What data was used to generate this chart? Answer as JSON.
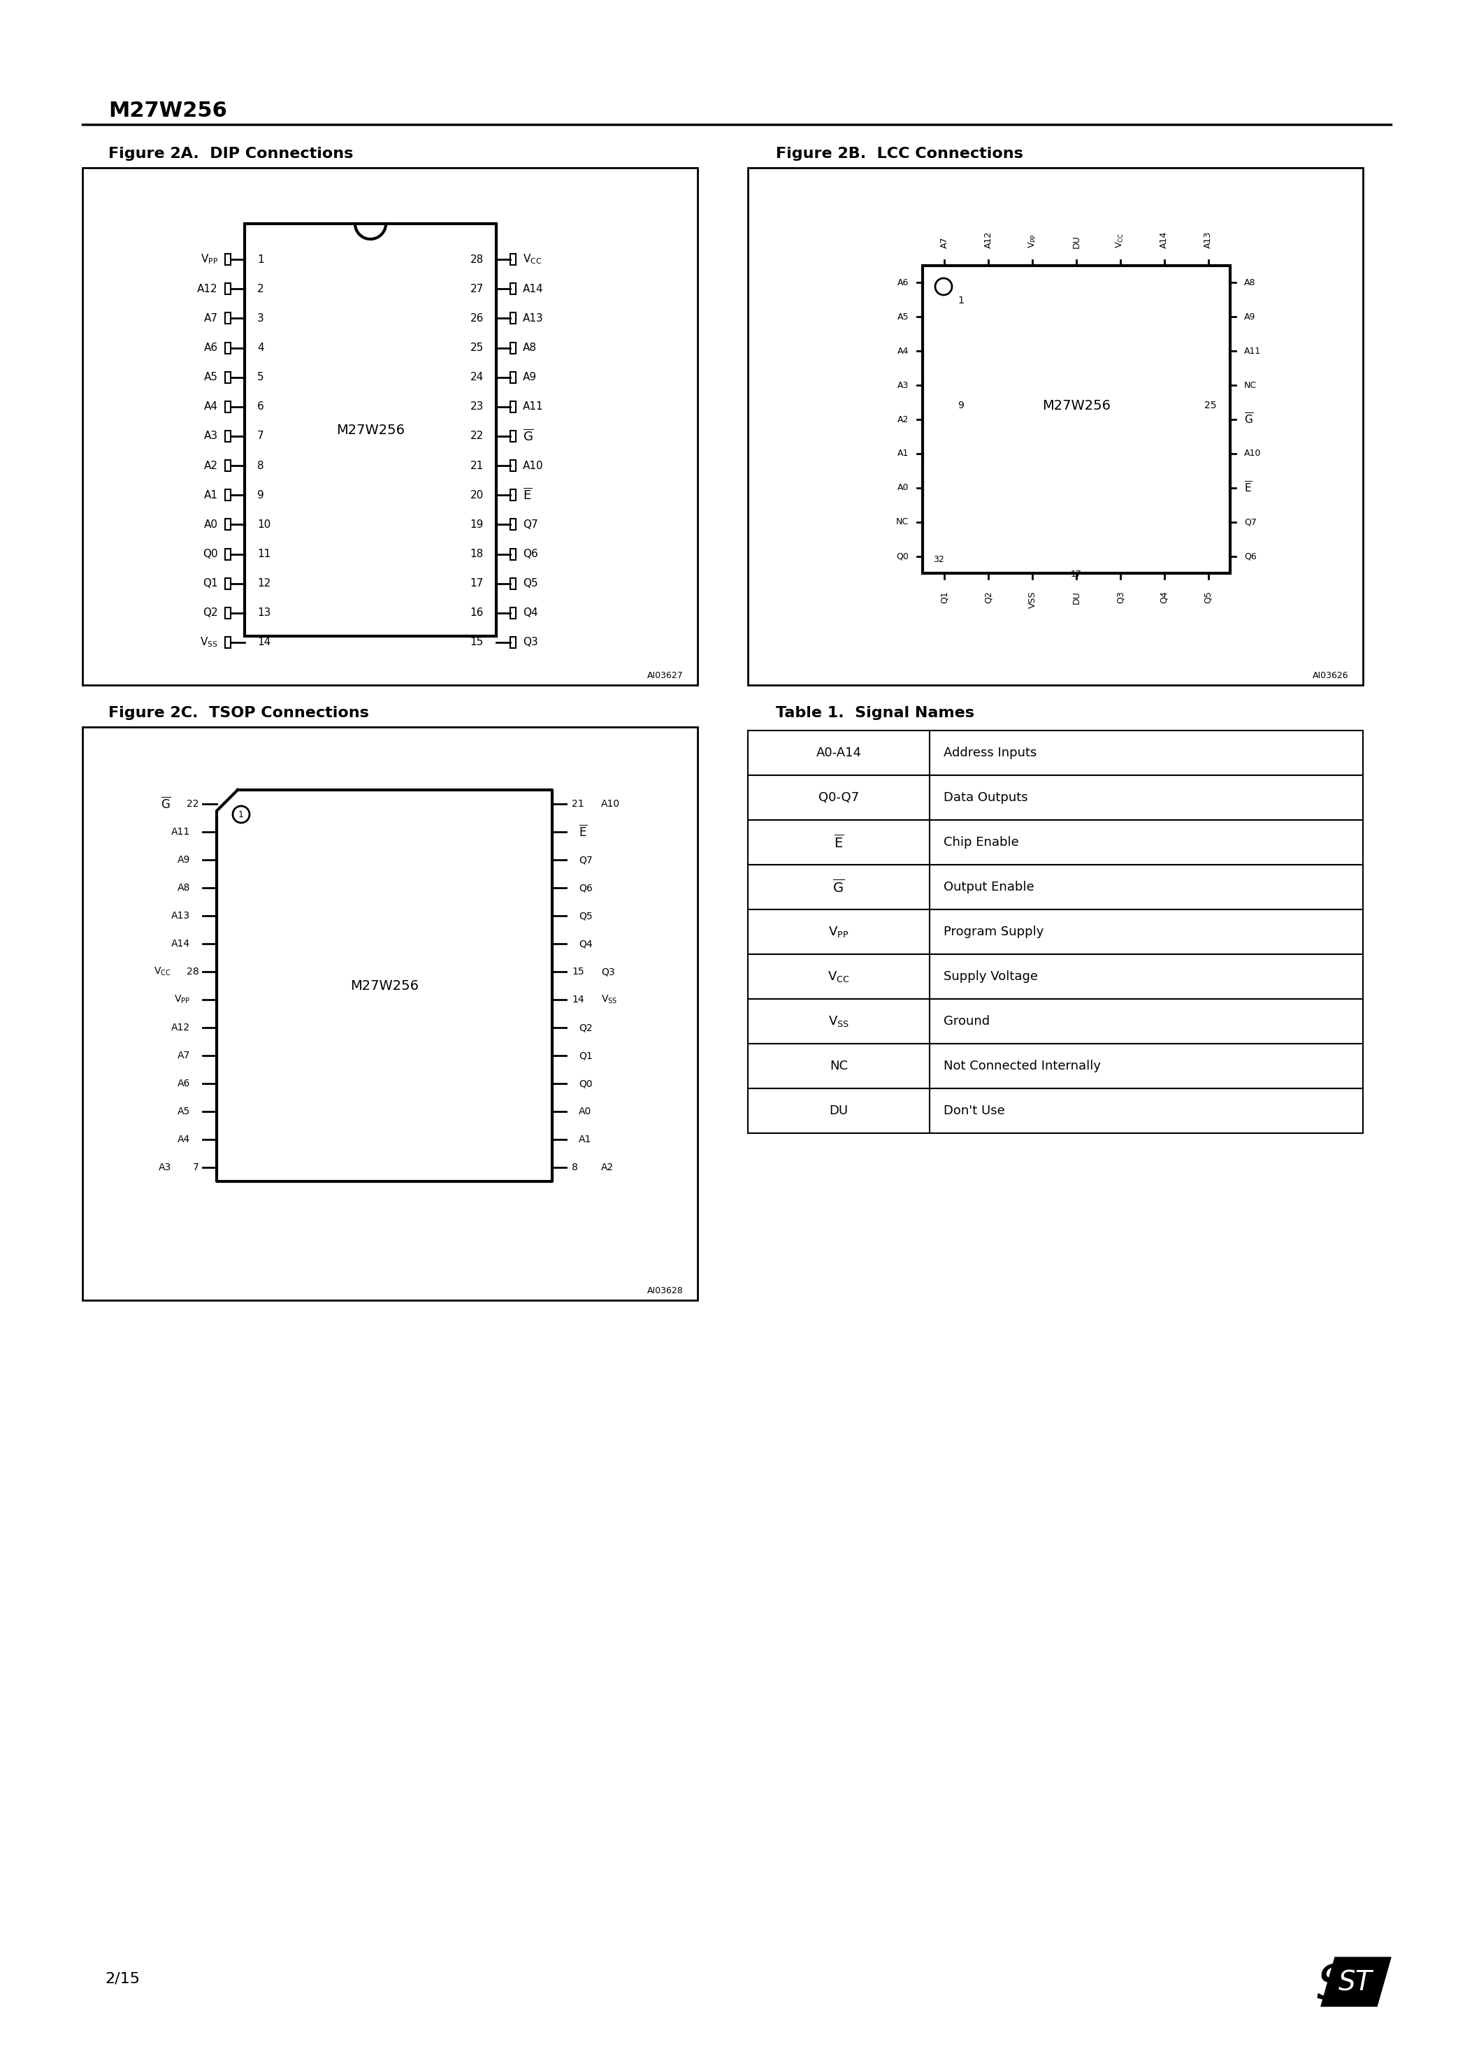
{
  "title": "M27W256",
  "bg_color": "#ffffff",
  "text_color": "#000000",
  "fig2a_title": "Figure 2A. DIP Connections",
  "fig2b_title": "Figure 2B. LCC Connections",
  "fig2c_title": "Figure 2C. TSOP Connections",
  "table1_title": "Table 1.  Signal Names",
  "page_num": "2/15",
  "chip_name": "M27W256",
  "dip_left_pins": [
    [
      "VPP",
      "1"
    ],
    [
      "A12",
      "2"
    ],
    [
      "A7",
      "3"
    ],
    [
      "A6",
      "4"
    ],
    [
      "A5",
      "5"
    ],
    [
      "A4",
      "6"
    ],
    [
      "A3",
      "7"
    ],
    [
      "A2",
      "8"
    ],
    [
      "A1",
      "9"
    ],
    [
      "A0",
      "10"
    ],
    [
      "Q0",
      "11"
    ],
    [
      "Q1",
      "12"
    ],
    [
      "Q2",
      "13"
    ],
    [
      "VSS",
      "14"
    ]
  ],
  "dip_right_pins": [
    [
      "VCC",
      "28"
    ],
    [
      "A14",
      "27"
    ],
    [
      "A13",
      "26"
    ],
    [
      "A8",
      "25"
    ],
    [
      "A9",
      "24"
    ],
    [
      "A11",
      "23"
    ],
    [
      "G_bar",
      "22"
    ],
    [
      "A10",
      "21"
    ],
    [
      "E_bar",
      "20"
    ],
    [
      "Q7",
      "19"
    ],
    [
      "Q6",
      "18"
    ],
    [
      "Q5",
      "17"
    ],
    [
      "Q4",
      "16"
    ],
    [
      "Q3",
      "15"
    ]
  ],
  "lcc_bottom_pins": [
    [
      "Q1",
      ""
    ],
    [
      "Q2",
      ""
    ],
    [
      "VSS",
      ""
    ],
    [
      "DU",
      ""
    ],
    [
      "Q3",
      ""
    ],
    [
      "Q4",
      ""
    ],
    [
      "Q5",
      ""
    ]
  ],
  "lcc_top_pins": [
    [
      "A7",
      ""
    ],
    [
      "A12",
      ""
    ],
    [
      "VPP",
      ""
    ],
    [
      "DU",
      ""
    ],
    [
      "VCC",
      ""
    ],
    [
      "A14",
      ""
    ],
    [
      "A13",
      ""
    ]
  ],
  "lcc_left_pins": [
    [
      "A6",
      ""
    ],
    [
      "A5",
      ""
    ],
    [
      "A4",
      ""
    ],
    [
      "A3",
      ""
    ],
    [
      "A2",
      "9"
    ],
    [
      "A1",
      ""
    ],
    [
      "A0",
      ""
    ],
    [
      "NC",
      ""
    ],
    [
      "Q0",
      ""
    ]
  ],
  "lcc_right_pins": [
    [
      "A8",
      ""
    ],
    [
      "A9",
      ""
    ],
    [
      "A11",
      ""
    ],
    [
      "NC",
      ""
    ],
    [
      "G_bar",
      "25"
    ],
    [
      "A10",
      ""
    ],
    [
      "E_bar",
      ""
    ],
    [
      "Q7",
      ""
    ],
    [
      "Q6",
      ""
    ]
  ],
  "signal_names": [
    [
      "A0-A14",
      "Address Inputs"
    ],
    [
      "Q0-Q7",
      "Data Outputs"
    ],
    [
      "E_bar",
      "Chip Enable"
    ],
    [
      "G_bar",
      "Output Enable"
    ],
    [
      "VPP",
      "Program Supply"
    ],
    [
      "VCC",
      "Supply Voltage"
    ],
    [
      "VSS",
      "Ground"
    ],
    [
      "NC",
      "Not Connected Internally"
    ],
    [
      "DU",
      "Don't Use"
    ]
  ],
  "tsop_left_pins": [
    [
      "G_bar",
      "22"
    ],
    [
      "A11",
      ""
    ],
    [
      "A9",
      ""
    ],
    [
      "A8",
      ""
    ],
    [
      "A13",
      ""
    ],
    [
      "A14",
      ""
    ],
    [
      "VCC",
      "28"
    ],
    [
      "VPP",
      ""
    ],
    [
      "A12",
      ""
    ],
    [
      "A7",
      ""
    ],
    [
      "A6",
      ""
    ],
    [
      "A5",
      ""
    ],
    [
      "A4",
      ""
    ],
    [
      "A3",
      "7"
    ]
  ],
  "tsop_right_pins": [
    [
      "A10",
      "21"
    ],
    [
      "E_bar",
      ""
    ],
    [
      "Q7",
      ""
    ],
    [
      "Q6",
      ""
    ],
    [
      "Q5",
      ""
    ],
    [
      "Q4",
      ""
    ],
    [
      "Q3",
      "15"
    ],
    [
      "VSS",
      "14"
    ],
    [
      "Q2",
      ""
    ],
    [
      "Q1",
      ""
    ],
    [
      "Q0",
      ""
    ],
    [
      "A0",
      ""
    ],
    [
      "A1",
      ""
    ],
    [
      "A2",
      "8"
    ]
  ]
}
